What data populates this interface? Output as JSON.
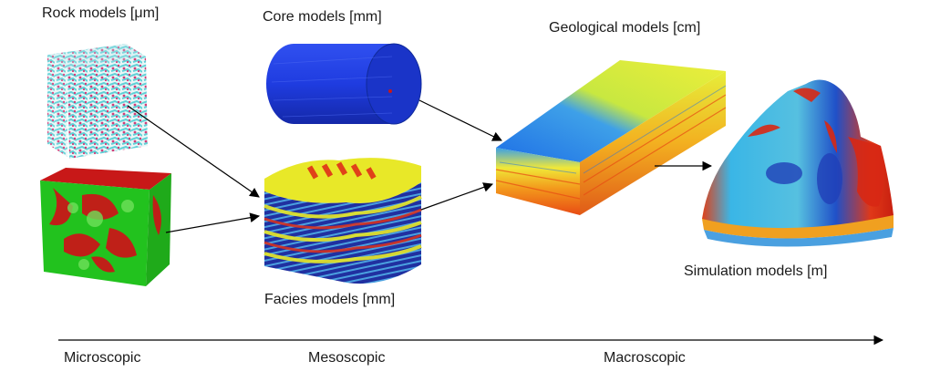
{
  "labels": {
    "rock": "Rock models [μm]",
    "core": "Core models [mm]",
    "geological": "Geological models [cm]",
    "facies": "Facies models [mm]",
    "simulation": "Simulation models [m]"
  },
  "scale": {
    "micro": "Microscopic",
    "meso": "Mesoscopic",
    "macro": "Macroscopic"
  },
  "colors": {
    "pore_cyan": "#5fd0d6",
    "pore_magenta": "#d23c78",
    "grain_green": "#22c21e",
    "cement_red": "#c81818",
    "core_blue": "#1f3ce0",
    "facies_yellow": "#e8e828",
    "facies_blue": "#2030a0",
    "facies_red": "#e03018",
    "geo_blue": "#1e6fe6",
    "geo_yellow": "#e6ee3a",
    "geo_orange": "#f39a1c",
    "sim_cyan": "#3ab6e6",
    "sim_red": "#d82814",
    "arrow": "#000000"
  }
}
